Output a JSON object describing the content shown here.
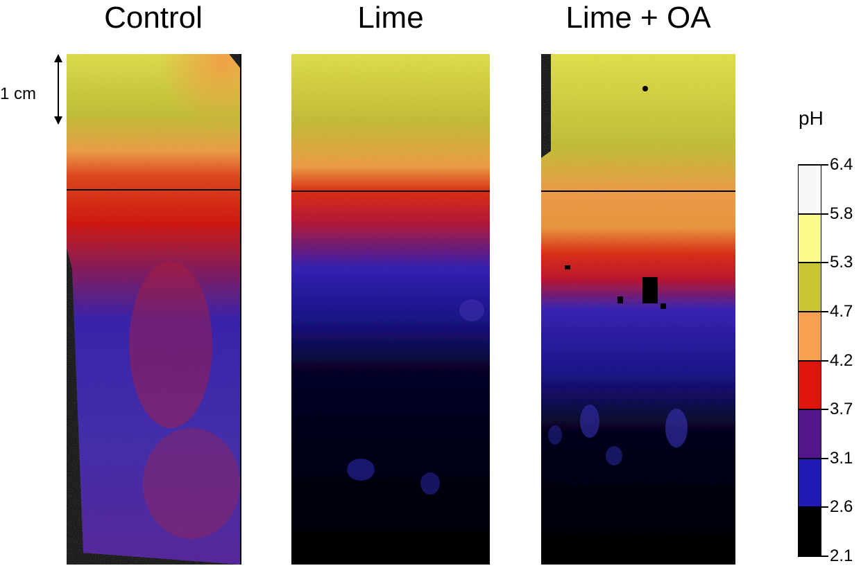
{
  "panels": [
    {
      "title": "Control"
    },
    {
      "title": "Lime"
    },
    {
      "title": "Lime + OA"
    }
  ],
  "scale_bar": {
    "label": "1 cm"
  },
  "colorbar": {
    "title": "pH",
    "ticks": [
      "6.4",
      "5.8",
      "5.3",
      "4.7",
      "4.2",
      "3.7",
      "3.1",
      "2.6",
      "2.1"
    ],
    "colors": [
      "#f6f8fa",
      "#fbfb8c",
      "#c9c433",
      "#f7a04f",
      "#e0140f",
      "#52158a",
      "#1f19b5",
      "#000000"
    ]
  }
}
